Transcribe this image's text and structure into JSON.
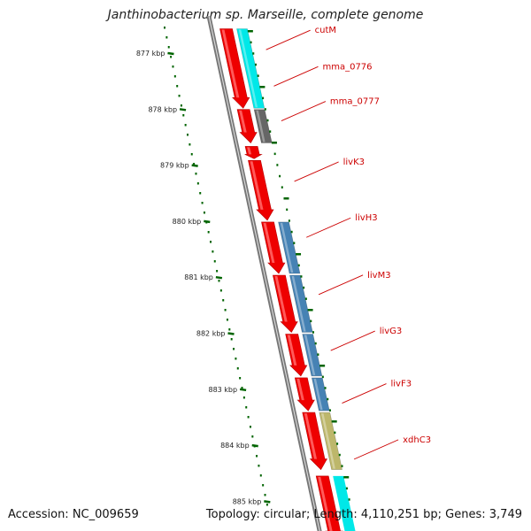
{
  "title": "Janthinobacterium sp. Marseille, complete genome",
  "accession": "Accession: NC_009659",
  "topology": "Topology: circular; Length: 4,110,251 bp; Genes: 3,749",
  "ruler": [
    {
      "label": "877 kbp",
      "pos": 877
    },
    {
      "label": "878 kbp",
      "pos": 878
    },
    {
      "label": "879 kbp",
      "pos": 879
    },
    {
      "label": "880 kbp",
      "pos": 880
    },
    {
      "label": "881 kbp",
      "pos": 881
    },
    {
      "label": "882 kbp",
      "pos": 882
    },
    {
      "label": "883 kbp",
      "pos": 883
    },
    {
      "label": "884 kbp",
      "pos": 884
    },
    {
      "label": "885 kbp",
      "pos": 885
    }
  ],
  "genes": [
    {
      "name": "cutM",
      "start": 876.55,
      "end": 878.0,
      "track": "cyan"
    },
    {
      "name": "mma_0776",
      "start": 877.99,
      "end": 878.62,
      "track": "gray"
    },
    {
      "name": "mma_0777",
      "start": 878.65,
      "end": 878.9,
      "track": "none"
    },
    {
      "name": "livK3",
      "start": 878.9,
      "end": 880.0,
      "track": "none"
    },
    {
      "name": "livH3",
      "start": 880.0,
      "end": 880.95,
      "track": "steel"
    },
    {
      "name": "livM3",
      "start": 880.95,
      "end": 882.0,
      "track": "steel"
    },
    {
      "name": "livG3",
      "start": 882.0,
      "end": 882.78,
      "track": "steel"
    },
    {
      "name": "livF3",
      "start": 882.78,
      "end": 883.4,
      "track": "steel"
    },
    {
      "name": "xdhC3",
      "start": 883.4,
      "end": 884.45,
      "track": "khaki"
    }
  ],
  "labels": [
    {
      "text": "cutM",
      "pos": 876.75
    },
    {
      "text": "mma_0776",
      "pos": 877.4
    },
    {
      "text": "mma_0777",
      "pos": 878.02
    },
    {
      "text": "livK3",
      "pos": 879.1
    },
    {
      "text": "livH3",
      "pos": 880.1
    },
    {
      "text": "livM3",
      "pos": 881.12
    },
    {
      "text": "livG3",
      "pos": 882.12
    },
    {
      "text": "livF3",
      "pos": 883.06
    },
    {
      "text": "xdhC3",
      "pos": 884.06
    }
  ],
  "colors": {
    "gene": "#ee0000",
    "cyan": "#00e8e8",
    "gray": "#666666",
    "steel": "#4682b4",
    "khaki": "#bdb76b",
    "backbone": "#777777",
    "label": "#cc0000",
    "ruler": "#006400"
  }
}
